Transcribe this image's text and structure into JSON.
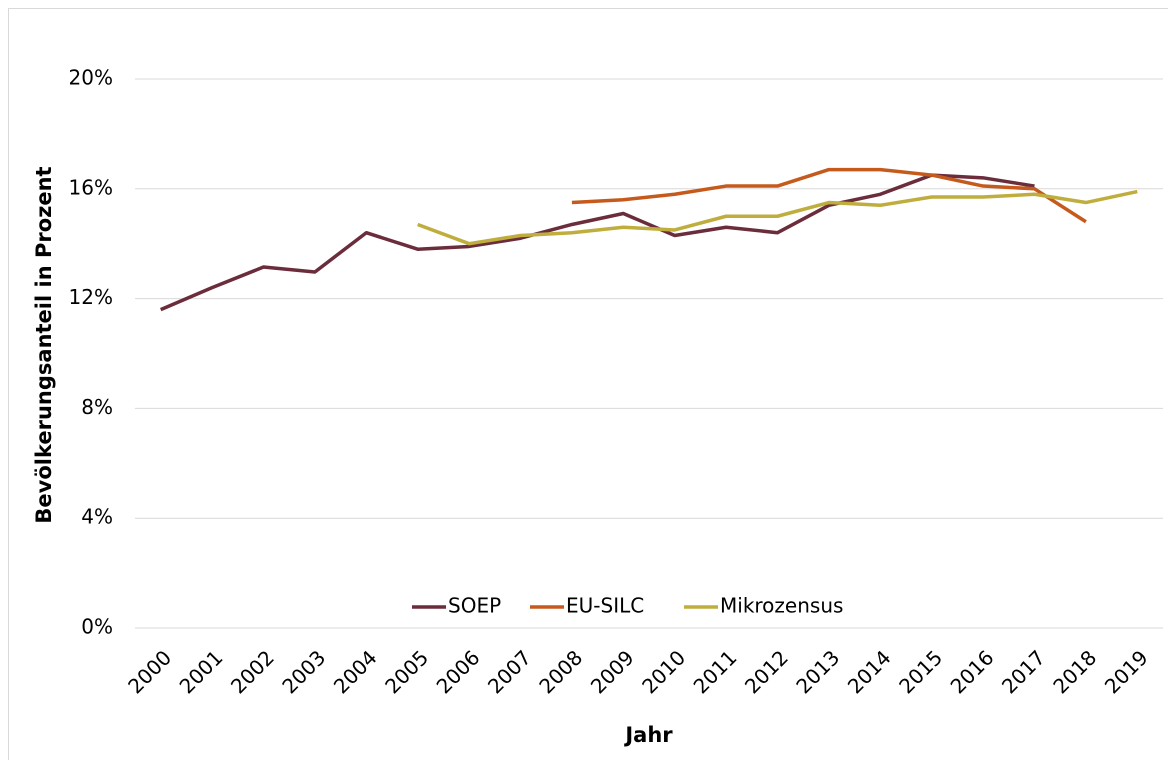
{
  "chart_data": {
    "type": "line",
    "y_label": "Bevölkerungsanteil in Prozent",
    "x_label": "Jahr",
    "categories": [
      "2000",
      "2001",
      "2002",
      "2003",
      "2004",
      "2005",
      "2006",
      "2007",
      "2008",
      "2009",
      "2010",
      "2011",
      "2012",
      "2013",
      "2014",
      "2015",
      "2016",
      "2017",
      "2018",
      "2019"
    ],
    "series": [
      {
        "name": "SOEP",
        "color": "#6b2d3c",
        "values": [
          11.6,
          12.4,
          13.15,
          12.97,
          14.4,
          13.8,
          13.9,
          14.2,
          14.7,
          15.1,
          14.3,
          14.6,
          14.4,
          15.4,
          15.8,
          16.5,
          16.4,
          16.1,
          null,
          null
        ]
      },
      {
        "name": "EU-SILC",
        "color": "#c55a1c",
        "values": [
          null,
          null,
          null,
          null,
          null,
          null,
          null,
          null,
          15.5,
          15.6,
          15.8,
          16.1,
          16.1,
          16.7,
          16.7,
          16.5,
          16.1,
          16.0,
          14.8,
          null
        ]
      },
      {
        "name": "Mikrozensus",
        "color": "#bfae3e",
        "values": [
          null,
          null,
          null,
          null,
          null,
          14.7,
          14.0,
          14.3,
          14.4,
          14.6,
          14.5,
          15.0,
          15.0,
          15.5,
          15.4,
          15.7,
          15.7,
          15.8,
          15.5,
          15.9
        ]
      }
    ],
    "ylim": [
      0,
      20
    ],
    "yticks": [
      {
        "value": 0,
        "label": "0%"
      },
      {
        "value": 4,
        "label": "4%"
      },
      {
        "value": 8,
        "label": "8%"
      },
      {
        "value": 12,
        "label": "12%"
      },
      {
        "value": 16,
        "label": "16%"
      },
      {
        "value": 20,
        "label": "20%"
      }
    ],
    "grid": true,
    "legend": "bottom"
  }
}
